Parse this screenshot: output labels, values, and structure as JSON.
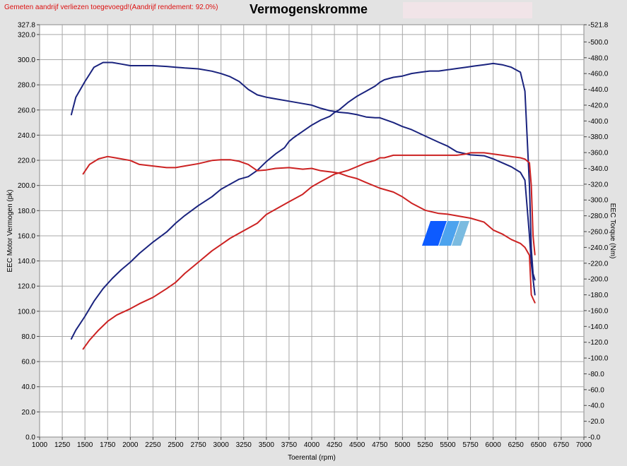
{
  "header": {
    "status_text": "Gemeten aandrijf verliezen toegevoegd!(Aandrijf rendement: 92.0%)",
    "status_color": "#dd1111",
    "title": "Vermogenskromme"
  },
  "chart_data": {
    "type": "line",
    "title": "Vermogenskromme",
    "xlabel": "Toerental (rpm)",
    "ylabel": "EEC Motor Vermogen (pk)",
    "y2label": "EEC Torque (Nm)",
    "xlim": [
      1000,
      7000
    ],
    "ylim": [
      0,
      327.8
    ],
    "y2lim": [
      0,
      521.8
    ],
    "grid": true,
    "legend": "none",
    "x_ticks": [
      "1000",
      "1250",
      "1500",
      "1750",
      "2000",
      "2250",
      "2500",
      "2750",
      "3000",
      "3250",
      "3500",
      "3750",
      "4000",
      "4250",
      "4500",
      "4750",
      "5000",
      "5250",
      "5500",
      "5750",
      "6000",
      "6250",
      "6500",
      "6750",
      "7000"
    ],
    "y_ticks": [
      "0.0",
      "20.0",
      "40.0",
      "60.0",
      "80.0",
      "100.0",
      "120.0",
      "140.0",
      "160.0",
      "180.0",
      "200.0",
      "220.0",
      "240.0",
      "260.0",
      "280.0",
      "300.0",
      "320.0",
      "327.8"
    ],
    "y2_ticks": [
      "0.0",
      "20.0",
      "40.0",
      "60.0",
      "80.0",
      "100.0",
      "120.0",
      "140.0",
      "160.0",
      "180.0",
      "200.0",
      "220.0",
      "240.0",
      "260.0",
      "280.0",
      "300.0",
      "320.0",
      "340.0",
      "360.0",
      "380.0",
      "400.0",
      "420.0",
      "440.0",
      "460.0",
      "480.0",
      "500.0",
      "521.8"
    ],
    "series": [
      {
        "color": "#1a237e",
        "axis": "left",
        "x": [
          1350,
          1400,
          1500,
          1600,
          1700,
          1800,
          1900,
          2000,
          2100,
          2250,
          2400,
          2500,
          2600,
          2750,
          2900,
          3000,
          3100,
          3200,
          3300,
          3400,
          3500,
          3600,
          3700,
          3750,
          3800,
          3900,
          4000,
          4100,
          4200,
          4250,
          4300,
          4400,
          4500,
          4600,
          4700,
          4750,
          4800,
          4900,
          5000,
          5100,
          5200,
          5300,
          5400,
          5500,
          5600,
          5700,
          5800,
          5900,
          6000,
          6100,
          6200,
          6300,
          6350,
          6400,
          6420,
          6440,
          6460
        ],
        "y": [
          78,
          85,
          96,
          108,
          118,
          126,
          133,
          139,
          146,
          155,
          163,
          170,
          176,
          184,
          191,
          197,
          201,
          205,
          207,
          212,
          219,
          225,
          230,
          235,
          238,
          243,
          248,
          252,
          255,
          258,
          260,
          266,
          271,
          275,
          279,
          282,
          284,
          286,
          287,
          289,
          290,
          291,
          291,
          292,
          293,
          294,
          295,
          296,
          297,
          296,
          294,
          290,
          275,
          200,
          150,
          130,
          125
        ]
      },
      {
        "color": "#1a237e",
        "axis": "right",
        "x": [
          1350,
          1400,
          1500,
          1600,
          1700,
          1750,
          1800,
          1900,
          2000,
          2100,
          2250,
          2400,
          2500,
          2600,
          2750,
          2900,
          3000,
          3100,
          3200,
          3300,
          3400,
          3500,
          3600,
          3750,
          3900,
          4000,
          4100,
          4200,
          4250,
          4300,
          4400,
          4500,
          4600,
          4700,
          4750,
          4800,
          4900,
          5000,
          5100,
          5250,
          5400,
          5500,
          5600,
          5750,
          5900,
          6000,
          6100,
          6200,
          6300,
          6350,
          6400,
          6420,
          6440,
          6460
        ],
        "y": [
          408,
          430,
          450,
          468,
          474,
          474,
          474,
          472,
          470,
          470,
          470,
          469,
          468,
          467,
          466,
          463,
          460,
          456,
          450,
          440,
          433,
          430,
          428,
          425,
          422,
          420,
          416,
          413,
          412,
          411,
          410,
          408,
          405,
          404,
          404,
          402,
          398,
          393,
          389,
          381,
          373,
          368,
          361,
          357,
          356,
          352,
          347,
          342,
          335,
          325,
          255,
          220,
          200,
          180
        ]
      },
      {
        "color": "#cc2222",
        "axis": "left",
        "x": [
          1480,
          1550,
          1650,
          1750,
          1850,
          2000,
          2100,
          2250,
          2400,
          2500,
          2600,
          2750,
          2900,
          3000,
          3100,
          3250,
          3400,
          3500,
          3600,
          3750,
          3900,
          4000,
          4100,
          4250,
          4300,
          4400,
          4500,
          4600,
          4700,
          4750,
          4800,
          4900,
          5000,
          5100,
          5250,
          5400,
          5500,
          5600,
          5700,
          5750,
          5800,
          5900,
          6000,
          6100,
          6200,
          6300,
          6350,
          6400,
          6420,
          6440,
          6460
        ],
        "y": [
          70,
          77,
          85,
          92,
          97,
          102,
          106,
          111,
          118,
          123,
          130,
          139,
          148,
          153,
          158,
          164,
          170,
          177,
          181,
          187,
          193,
          199,
          203,
          209,
          210,
          212,
          215,
          218,
          220,
          222,
          222,
          224,
          224,
          224,
          224,
          224,
          224,
          224,
          225,
          226,
          226,
          226,
          225,
          224,
          223,
          222,
          221,
          218,
          200,
          160,
          145
        ]
      },
      {
        "color": "#cc2222",
        "axis": "right",
        "x": [
          1480,
          1550,
          1650,
          1750,
          1850,
          2000,
          2100,
          2250,
          2400,
          2500,
          2600,
          2750,
          2900,
          3000,
          3100,
          3200,
          3300,
          3400,
          3500,
          3600,
          3750,
          3900,
          4000,
          4100,
          4250,
          4300,
          4400,
          4500,
          4600,
          4750,
          4900,
          5000,
          5100,
          5250,
          5400,
          5500,
          5600,
          5750,
          5900,
          6000,
          6100,
          6200,
          6300,
          6350,
          6400,
          6420,
          6440,
          6460
        ],
        "y": [
          333,
          345,
          352,
          355,
          353,
          350,
          345,
          343,
          341,
          341,
          343,
          346,
          350,
          351,
          351,
          349,
          345,
          337,
          338,
          340,
          341,
          339,
          340,
          337,
          335,
          334,
          330,
          327,
          322,
          315,
          310,
          304,
          296,
          287,
          283,
          282,
          280,
          277,
          272,
          262,
          257,
          250,
          245,
          240,
          230,
          180,
          175,
          170
        ]
      }
    ],
    "watermark": {
      "color_primary": "#0d5bff",
      "color_secondary": "#4da3ee",
      "color_tertiary": "#7bbbe0"
    }
  }
}
